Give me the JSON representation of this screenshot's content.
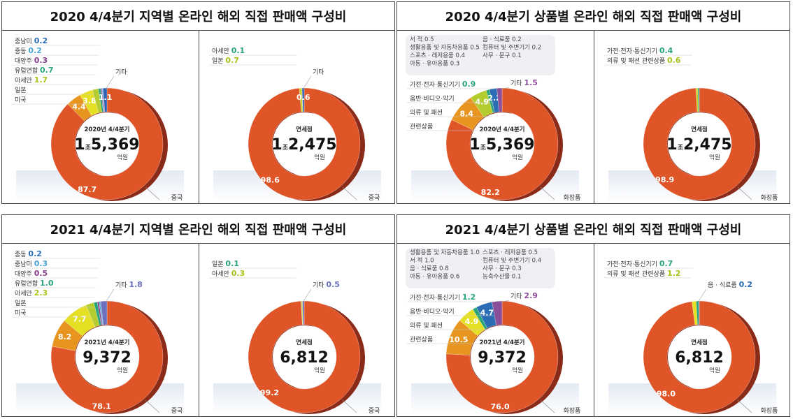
{
  "panels": [
    {
      "title": "2020 4/4분기 지역별 온라인 해외 직접 판매액 구성비",
      "charts": [
        {
          "center": {
            "caption": "2020년 4/4분기",
            "big_prefix": "1",
            "big_unit": "조",
            "big": "5,369",
            "unit": "억원"
          },
          "main_label": "중국",
          "segments": [
            {
              "name": "중국",
              "value": 87.7,
              "color": "#df5527",
              "inside": true
            },
            {
              "name": "미국",
              "value": 4.4,
              "color": "#e8951f",
              "inside": true
            },
            {
              "name": "일본",
              "value": 3.8,
              "color": "#e6e024",
              "inside": true
            },
            {
              "name": "아세안",
              "value": 1.7,
              "color": "#b5cc2e"
            },
            {
              "name": "유럽연합",
              "value": 0.7,
              "color": "#2aa57a"
            },
            {
              "name": "대양주",
              "value": 0.3,
              "color": "#8b3f8f"
            },
            {
              "name": "중동",
              "value": 0.2,
              "color": "#4aa6d8"
            },
            {
              "name": "중남미",
              "value": 0.2,
              "color": "#2a6db5"
            },
            {
              "name": "기타",
              "value": 1.1,
              "color": "#3060b4",
              "inside": true
            }
          ],
          "legend": [
            {
              "name": "중남미",
              "value": "0.2",
              "color": "#2a6db5"
            },
            {
              "name": "중동",
              "value": "0.2",
              "color": "#4aa6d8"
            },
            {
              "name": "대양주",
              "value": "0.3",
              "color": "#8b3f8f"
            },
            {
              "name": "유럽연합",
              "value": "0.7",
              "color": "#2aa57a"
            },
            {
              "name": "아세안",
              "value": "1.7",
              "color": "#a9c21a"
            },
            {
              "name": "일본",
              "value": "",
              "color": "#333"
            },
            {
              "name": "미국",
              "value": "",
              "color": "#333"
            },
            {
              "name": "기타",
              "value": "",
              "color": "#333",
              "position": "top-right"
            }
          ]
        },
        {
          "center": {
            "caption": "면세점",
            "big_prefix": "1",
            "big_unit": "조",
            "big": "2,475",
            "unit": "억원"
          },
          "main_label": "중국",
          "segments": [
            {
              "name": "중국",
              "value": 98.6,
              "color": "#df5527",
              "inside": true
            },
            {
              "name": "일본",
              "value": 0.7,
              "color": "#c8d42a"
            },
            {
              "name": "아세안",
              "value": 0.1,
              "color": "#2aa57a"
            },
            {
              "name": "기타",
              "value": 0.6,
              "color": "#3060b4",
              "inside": true,
              "dark": true
            }
          ],
          "legend": [
            {
              "name": "아세안",
              "value": "0.1",
              "color": "#2aa57a"
            },
            {
              "name": "일본",
              "value": "0.7",
              "color": "#a9c21a"
            },
            {
              "name": "기타",
              "value": "",
              "color": "#333",
              "position": "top-right"
            }
          ]
        }
      ]
    },
    {
      "title": "2020 4/4분기 상품별 온라인 해외 직접 판매액 구성비",
      "charts": [
        {
          "center": {
            "caption": "2020년 4/4분기",
            "big_prefix": "1",
            "big_unit": "조",
            "big": "5,369",
            "unit": "억원"
          },
          "main_label": "화장품",
          "note": [
            "서 적 0.5",
            "생활용품 및 자동차용품 0.5",
            "스포츠 · 레저용품 0.4",
            "아동 · 유아용품 0.3",
            "음 · 식료품 0.2",
            "컴퓨터 및 주변기기 0.2",
            "사무 · 문구 0.1"
          ],
          "segments": [
            {
              "name": "화장품",
              "value": 82.2,
              "color": "#df5527",
              "inside": true
            },
            {
              "name": "의류 및 패션 관련상품",
              "value": 8.4,
              "color": "#e8951f",
              "inside": true
            },
            {
              "name": "음반·비디오·악기",
              "value": 4.9,
              "color": "#b5cc2e",
              "inside": true
            },
            {
              "name": "가전·전자·통신기기",
              "value": 0.9,
              "color": "#2aa57a"
            },
            {
              "name": "기타 품목",
              "value": 2.2,
              "color": "#2a6db5",
              "inside": true
            },
            {
              "name": "기타",
              "value": 1.5,
              "color": "#8b4f9a"
            }
          ],
          "legend": [
            {
              "name": "가전·전자·통신기기",
              "value": "0.9",
              "color": "#2aa57a"
            },
            {
              "name": "음반·비디오·악기",
              "value": "",
              "color": "#333"
            },
            {
              "name": "의류 및 패션",
              "value": "",
              "color": "#333"
            },
            {
              "name": "관련상품",
              "value": "",
              "color": "#333"
            },
            {
              "name": "기타",
              "value": "1.5",
              "color": "#8b4f9a",
              "position": "top-right"
            }
          ]
        },
        {
          "center": {
            "caption": "면세점",
            "big_prefix": "1",
            "big_unit": "조",
            "big": "2,475",
            "unit": "억원"
          },
          "main_label": "화장품",
          "segments": [
            {
              "name": "화장품",
              "value": 98.9,
              "color": "#df5527",
              "inside": true
            },
            {
              "name": "의류 및 패션 관련상품",
              "value": 0.6,
              "color": "#c8d42a"
            },
            {
              "name": "가전·전자·통신기기",
              "value": 0.4,
              "color": "#2aa57a"
            }
          ],
          "legend": [
            {
              "name": "가전·전자·통신기기",
              "value": "0.4",
              "color": "#2aa57a"
            },
            {
              "name": "의류 및 패션 관련상품",
              "value": "0.6",
              "color": "#a9c21a"
            }
          ]
        }
      ]
    },
    {
      "title": "2021 4/4분기 지역별 온라인 해외 직접 판매액 구성비",
      "charts": [
        {
          "center": {
            "caption": "2021년 4/4분기",
            "big_prefix": "",
            "big_unit": "",
            "big": "9,372",
            "unit": "억원"
          },
          "main_label": "중국",
          "segments": [
            {
              "name": "중국",
              "value": 78.1,
              "color": "#df5527",
              "inside": true
            },
            {
              "name": "미국",
              "value": 8.2,
              "color": "#e8951f",
              "inside": true
            },
            {
              "name": "일본",
              "value": 7.7,
              "color": "#e6e024",
              "inside": true
            },
            {
              "name": "아세안",
              "value": 2.3,
              "color": "#b5cc2e"
            },
            {
              "name": "유럽연합",
              "value": 1.0,
              "color": "#2aa57a"
            },
            {
              "name": "대양주",
              "value": 0.5,
              "color": "#8b3f8f"
            },
            {
              "name": "중남미",
              "value": 0.3,
              "color": "#4aa6d8"
            },
            {
              "name": "중동",
              "value": 0.2,
              "color": "#2a6db5"
            },
            {
              "name": "기타",
              "value": 1.8,
              "color": "#6a6fc0"
            }
          ],
          "legend": [
            {
              "name": "중동",
              "value": "0.2",
              "color": "#2a6db5"
            },
            {
              "name": "중남미",
              "value": "0.3",
              "color": "#4aa6d8"
            },
            {
              "name": "대양주",
              "value": "0.5",
              "color": "#8b3f8f"
            },
            {
              "name": "유럽연합",
              "value": "1.0",
              "color": "#2aa57a"
            },
            {
              "name": "아세안",
              "value": "2.3",
              "color": "#a9c21a"
            },
            {
              "name": "일본",
              "value": "",
              "color": "#333"
            },
            {
              "name": "미국",
              "value": "",
              "color": "#333"
            },
            {
              "name": "기타",
              "value": "1.8",
              "color": "#6a6fc0",
              "position": "top-right"
            }
          ]
        },
        {
          "center": {
            "caption": "면세점",
            "big_prefix": "",
            "big_unit": "",
            "big": "6,812",
            "unit": "억원"
          },
          "main_label": "중국",
          "segments": [
            {
              "name": "중국",
              "value": 99.2,
              "color": "#df5527",
              "inside": true
            },
            {
              "name": "일본",
              "value": 0.1,
              "color": "#2aa57a"
            },
            {
              "name": "아세안",
              "value": 0.3,
              "color": "#c8d42a"
            },
            {
              "name": "기타",
              "value": 0.5,
              "color": "#6a6fc0"
            }
          ],
          "legend": [
            {
              "name": "일본",
              "value": "0.1",
              "color": "#2aa57a"
            },
            {
              "name": "아세안",
              "value": "0.3",
              "color": "#a9c21a"
            },
            {
              "name": "기타",
              "value": "0.5",
              "color": "#6a6fc0",
              "position": "top-right"
            }
          ]
        }
      ]
    },
    {
      "title": "2021 4/4분기 상품별 온라인 해외 직접 판매액 구성비",
      "charts": [
        {
          "center": {
            "caption": "2021년 4/4분기",
            "big_prefix": "",
            "big_unit": "",
            "big": "9,372",
            "unit": "억원"
          },
          "main_label": "화장품",
          "note": [
            "생활용품 및 자동차용품 1.0",
            "서 적 1.0",
            "음 · 식료품 0.8",
            "아동 · 유아용품 0.6",
            "스포츠 · 레저용품 0.5",
            "컴퓨터 및 주변기기 0.4",
            "사무 · 문구 0.3",
            "농축수산물 0.1"
          ],
          "segments": [
            {
              "name": "화장품",
              "value": 76.0,
              "color": "#df5527",
              "inside": true
            },
            {
              "name": "의류 및 패션 관련상품",
              "value": 10.5,
              "color": "#e8951f",
              "inside": true
            },
            {
              "name": "음반·비디오·악기",
              "value": 4.9,
              "color": "#e6e024",
              "inside": true
            },
            {
              "name": "가전·전자·통신기기",
              "value": 1.2,
              "color": "#2aa57a"
            },
            {
              "name": "기타 품목",
              "value": 4.7,
              "color": "#2a6db5",
              "inside": true
            },
            {
              "name": "기타",
              "value": 2.9,
              "color": "#8b4f9a"
            }
          ],
          "legend": [
            {
              "name": "가전·전자·통신기기",
              "value": "1.2",
              "color": "#2aa57a"
            },
            {
              "name": "음반·비디오·악기",
              "value": "",
              "color": "#333"
            },
            {
              "name": "의류 및 패션",
              "value": "",
              "color": "#333"
            },
            {
              "name": "관련상품",
              "value": "",
              "color": "#333"
            },
            {
              "name": "기타",
              "value": "2.9",
              "color": "#8b4f9a",
              "position": "top-right"
            }
          ]
        },
        {
          "center": {
            "caption": "면세점",
            "big_prefix": "",
            "big_unit": "",
            "big": "6,812",
            "unit": "억원"
          },
          "main_label": "화장품",
          "segments": [
            {
              "name": "화장품",
              "value": 98.0,
              "color": "#df5527",
              "inside": true
            },
            {
              "name": "의류 및 패션 관련상품",
              "value": 1.2,
              "color": "#e6e024"
            },
            {
              "name": "가전·전자·통신기기",
              "value": 0.7,
              "color": "#2aa57a"
            },
            {
              "name": "음·식료품",
              "value": 0.2,
              "color": "#2a6db5"
            }
          ],
          "legend": [
            {
              "name": "가전·전자·통신기기",
              "value": "0.7",
              "color": "#2aa57a"
            },
            {
              "name": "의류 및 패션 관련상품",
              "value": "1.2",
              "color": "#a9c21a"
            },
            {
              "name": "음 · 식료품",
              "value": "0.2",
              "color": "#2a6db5",
              "position": "top-right"
            }
          ]
        }
      ]
    }
  ],
  "chart_data": [
    {
      "type": "pie",
      "title": "2020 4/4분기 지역별 온라인 해외 직접 판매액 구성비 (온라인)",
      "categories": [
        "중국",
        "미국",
        "일본",
        "아세안",
        "유럽연합",
        "대양주",
        "중동",
        "중남미",
        "기타"
      ],
      "values": [
        87.7,
        4.4,
        3.8,
        1.7,
        0.7,
        0.3,
        0.2,
        0.2,
        1.1
      ]
    },
    {
      "type": "pie",
      "title": "2020 4/4분기 지역별 온라인 해외 직접 판매액 구성비 (면세점)",
      "categories": [
        "중국",
        "일본",
        "아세안",
        "기타"
      ],
      "values": [
        98.6,
        0.7,
        0.1,
        0.6
      ]
    },
    {
      "type": "pie",
      "title": "2020 4/4분기 상품별 온라인 해외 직접 판매액 구성비 (온라인)",
      "categories": [
        "화장품",
        "의류 및 패션 관련상품",
        "음반·비디오·악기",
        "가전·전자·통신기기",
        "서 적/생활용품 등",
        "기타"
      ],
      "values": [
        82.2,
        8.4,
        4.9,
        0.9,
        2.2,
        1.5
      ]
    },
    {
      "type": "pie",
      "title": "2020 4/4분기 상품별 온라인 해외 직접 판매액 구성비 (면세점)",
      "categories": [
        "화장품",
        "의류 및 패션 관련상품",
        "가전·전자·통신기기"
      ],
      "values": [
        98.9,
        0.6,
        0.4
      ]
    },
    {
      "type": "pie",
      "title": "2021 4/4분기 지역별 온라인 해외 직접 판매액 구성비 (온라인)",
      "categories": [
        "중국",
        "미국",
        "일본",
        "아세안",
        "유럽연합",
        "대양주",
        "중남미",
        "중동",
        "기타"
      ],
      "values": [
        78.1,
        8.2,
        7.7,
        2.3,
        1.0,
        0.5,
        0.3,
        0.2,
        1.8
      ]
    },
    {
      "type": "pie",
      "title": "2021 4/4분기 지역별 온라인 해외 직접 판매액 구성비 (면세점)",
      "categories": [
        "중국",
        "일본",
        "아세안",
        "기타"
      ],
      "values": [
        99.2,
        0.1,
        0.3,
        0.5
      ]
    },
    {
      "type": "pie",
      "title": "2021 4/4분기 상품별 온라인 해외 직접 판매액 구성비 (온라인)",
      "categories": [
        "화장품",
        "의류 및 패션 관련상품",
        "음반·비디오·악기",
        "가전·전자·통신기기",
        "생활용품/서 적 등",
        "기타"
      ],
      "values": [
        76.0,
        10.5,
        4.9,
        1.2,
        4.7,
        2.9
      ]
    },
    {
      "type": "pie",
      "title": "2021 4/4분기 상품별 온라인 해외 직접 판매액 구성비 (면세점)",
      "categories": [
        "화장품",
        "의류 및 패션 관련상품",
        "가전·전자·통신기기",
        "음·식료품"
      ],
      "values": [
        98.0,
        1.2,
        0.7,
        0.2
      ]
    }
  ]
}
